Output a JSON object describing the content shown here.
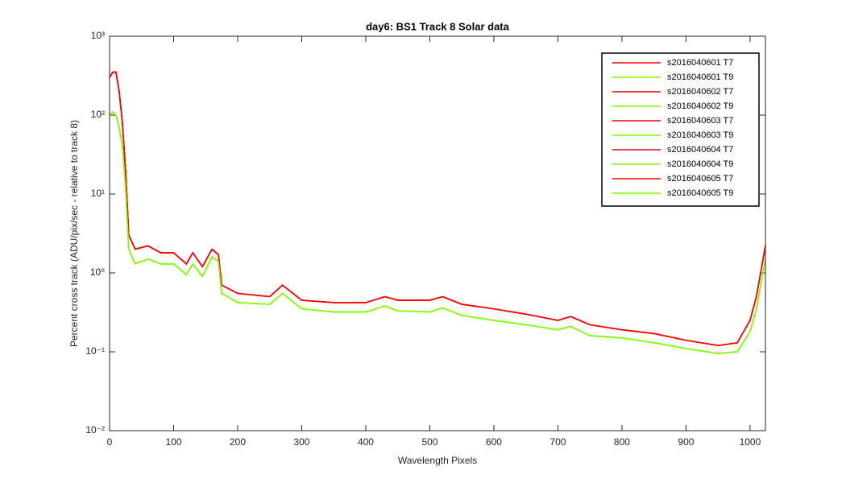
{
  "chart_data": {
    "type": "line",
    "title": "day6: BS1  Track 8 Solar data",
    "x_label": "Wavelength Pixels",
    "y_label": "Percent cross track (ADU/pix/sec - relative to track 8)",
    "y_scale": "log",
    "xlim": [
      0,
      1024
    ],
    "ylim": [
      0.01,
      1000
    ],
    "xticks": [
      0,
      100,
      200,
      300,
      400,
      500,
      600,
      700,
      800,
      900,
      1000
    ],
    "yticks": [
      {
        "value": 0.01,
        "label": "10⁻²"
      },
      {
        "value": 0.1,
        "label": "10⁻¹"
      },
      {
        "value": 1,
        "label": "10⁰"
      },
      {
        "value": 10,
        "label": "10¹"
      },
      {
        "value": 100,
        "label": "10²"
      },
      {
        "value": 1000,
        "label": "10³"
      }
    ],
    "legend_position": "upper right",
    "x": [
      0,
      5,
      10,
      15,
      20,
      25,
      30,
      40,
      60,
      80,
      100,
      120,
      130,
      145,
      160,
      170,
      175,
      200,
      250,
      270,
      300,
      350,
      400,
      430,
      450,
      500,
      520,
      550,
      600,
      650,
      700,
      720,
      750,
      800,
      850,
      900,
      950,
      980,
      1000,
      1010,
      1024
    ],
    "series": [
      {
        "name": "s2016040601 T7",
        "color": "#ff0000",
        "values": [
          300,
          350,
          350,
          200,
          80,
          20,
          3,
          2,
          2.2,
          1.8,
          1.8,
          1.3,
          1.8,
          1.2,
          2.0,
          1.7,
          0.7,
          0.55,
          0.5,
          0.7,
          0.45,
          0.42,
          0.42,
          0.5,
          0.45,
          0.45,
          0.5,
          0.4,
          0.35,
          0.3,
          0.25,
          0.28,
          0.22,
          0.19,
          0.17,
          0.14,
          0.12,
          0.13,
          0.25,
          0.5,
          2.2
        ]
      },
      {
        "name": "s2016040601 T9",
        "color": "#80ff00",
        "values": [
          100,
          110,
          100,
          70,
          40,
          12,
          2,
          1.3,
          1.5,
          1.3,
          1.3,
          0.95,
          1.3,
          0.9,
          1.6,
          1.4,
          0.55,
          0.42,
          0.4,
          0.55,
          0.35,
          0.32,
          0.32,
          0.38,
          0.33,
          0.32,
          0.36,
          0.29,
          0.25,
          0.22,
          0.19,
          0.21,
          0.16,
          0.15,
          0.13,
          0.11,
          0.095,
          0.1,
          0.18,
          0.35,
          1.5
        ]
      },
      {
        "name": "s2016040602 T7",
        "color": "#ff0000",
        "values": [
          300,
          350,
          350,
          200,
          80,
          20,
          3,
          2,
          2.2,
          1.8,
          1.8,
          1.3,
          1.8,
          1.2,
          2.0,
          1.7,
          0.7,
          0.55,
          0.5,
          0.7,
          0.45,
          0.42,
          0.42,
          0.5,
          0.45,
          0.45,
          0.5,
          0.4,
          0.35,
          0.3,
          0.25,
          0.28,
          0.22,
          0.19,
          0.17,
          0.14,
          0.12,
          0.13,
          0.25,
          0.5,
          2.2
        ]
      },
      {
        "name": "s2016040602 T9",
        "color": "#80ff00",
        "values": [
          100,
          110,
          100,
          70,
          40,
          12,
          2,
          1.3,
          1.5,
          1.3,
          1.3,
          0.95,
          1.3,
          0.9,
          1.6,
          1.4,
          0.55,
          0.42,
          0.4,
          0.55,
          0.35,
          0.32,
          0.32,
          0.38,
          0.33,
          0.32,
          0.36,
          0.29,
          0.25,
          0.22,
          0.19,
          0.21,
          0.16,
          0.15,
          0.13,
          0.11,
          0.095,
          0.1,
          0.18,
          0.35,
          1.5
        ]
      },
      {
        "name": "s2016040603 T7",
        "color": "#ff0000",
        "values": [
          300,
          350,
          350,
          200,
          80,
          20,
          3,
          2,
          2.2,
          1.8,
          1.8,
          1.3,
          1.8,
          1.2,
          2.0,
          1.7,
          0.7,
          0.55,
          0.5,
          0.7,
          0.45,
          0.42,
          0.42,
          0.5,
          0.45,
          0.45,
          0.5,
          0.4,
          0.35,
          0.3,
          0.25,
          0.28,
          0.22,
          0.19,
          0.17,
          0.14,
          0.12,
          0.13,
          0.25,
          0.5,
          2.2
        ]
      },
      {
        "name": "s2016040603 T9",
        "color": "#80ff00",
        "values": [
          100,
          110,
          100,
          70,
          40,
          12,
          2,
          1.3,
          1.5,
          1.3,
          1.3,
          0.95,
          1.3,
          0.9,
          1.6,
          1.4,
          0.55,
          0.42,
          0.4,
          0.55,
          0.35,
          0.32,
          0.32,
          0.38,
          0.33,
          0.32,
          0.36,
          0.29,
          0.25,
          0.22,
          0.19,
          0.21,
          0.16,
          0.15,
          0.13,
          0.11,
          0.095,
          0.1,
          0.18,
          0.35,
          1.5
        ]
      },
      {
        "name": "s2016040604 T7",
        "color": "#ff0000",
        "values": [
          300,
          350,
          350,
          200,
          80,
          20,
          3,
          2,
          2.2,
          1.8,
          1.8,
          1.3,
          1.8,
          1.2,
          2.0,
          1.7,
          0.7,
          0.55,
          0.5,
          0.7,
          0.45,
          0.42,
          0.42,
          0.5,
          0.45,
          0.45,
          0.5,
          0.4,
          0.35,
          0.3,
          0.25,
          0.28,
          0.22,
          0.19,
          0.17,
          0.14,
          0.12,
          0.13,
          0.25,
          0.5,
          2.2
        ]
      },
      {
        "name": "s2016040604 T9",
        "color": "#80ff00",
        "values": [
          100,
          110,
          100,
          70,
          40,
          12,
          2,
          1.3,
          1.5,
          1.3,
          1.3,
          0.95,
          1.3,
          0.9,
          1.6,
          1.4,
          0.55,
          0.42,
          0.4,
          0.55,
          0.35,
          0.32,
          0.32,
          0.38,
          0.33,
          0.32,
          0.36,
          0.29,
          0.25,
          0.22,
          0.19,
          0.21,
          0.16,
          0.15,
          0.13,
          0.11,
          0.095,
          0.1,
          0.18,
          0.35,
          1.5
        ]
      },
      {
        "name": "s2016040605 T7",
        "color": "#ff0000",
        "values": [
          300,
          350,
          350,
          200,
          80,
          20,
          3,
          2,
          2.2,
          1.8,
          1.8,
          1.3,
          1.8,
          1.2,
          2.0,
          1.7,
          0.7,
          0.55,
          0.5,
          0.7,
          0.45,
          0.42,
          0.42,
          0.5,
          0.45,
          0.45,
          0.5,
          0.4,
          0.35,
          0.3,
          0.25,
          0.28,
          0.22,
          0.19,
          0.17,
          0.14,
          0.12,
          0.13,
          0.25,
          0.5,
          2.2
        ]
      },
      {
        "name": "s2016040605 T9",
        "color": "#80ff00",
        "values": [
          100,
          110,
          100,
          70,
          40,
          12,
          2,
          1.3,
          1.5,
          1.3,
          1.3,
          0.95,
          1.3,
          0.9,
          1.6,
          1.4,
          0.55,
          0.42,
          0.4,
          0.55,
          0.35,
          0.32,
          0.32,
          0.38,
          0.33,
          0.32,
          0.36,
          0.29,
          0.25,
          0.22,
          0.19,
          0.21,
          0.16,
          0.15,
          0.13,
          0.11,
          0.095,
          0.1,
          0.18,
          0.35,
          1.5
        ]
      }
    ]
  }
}
